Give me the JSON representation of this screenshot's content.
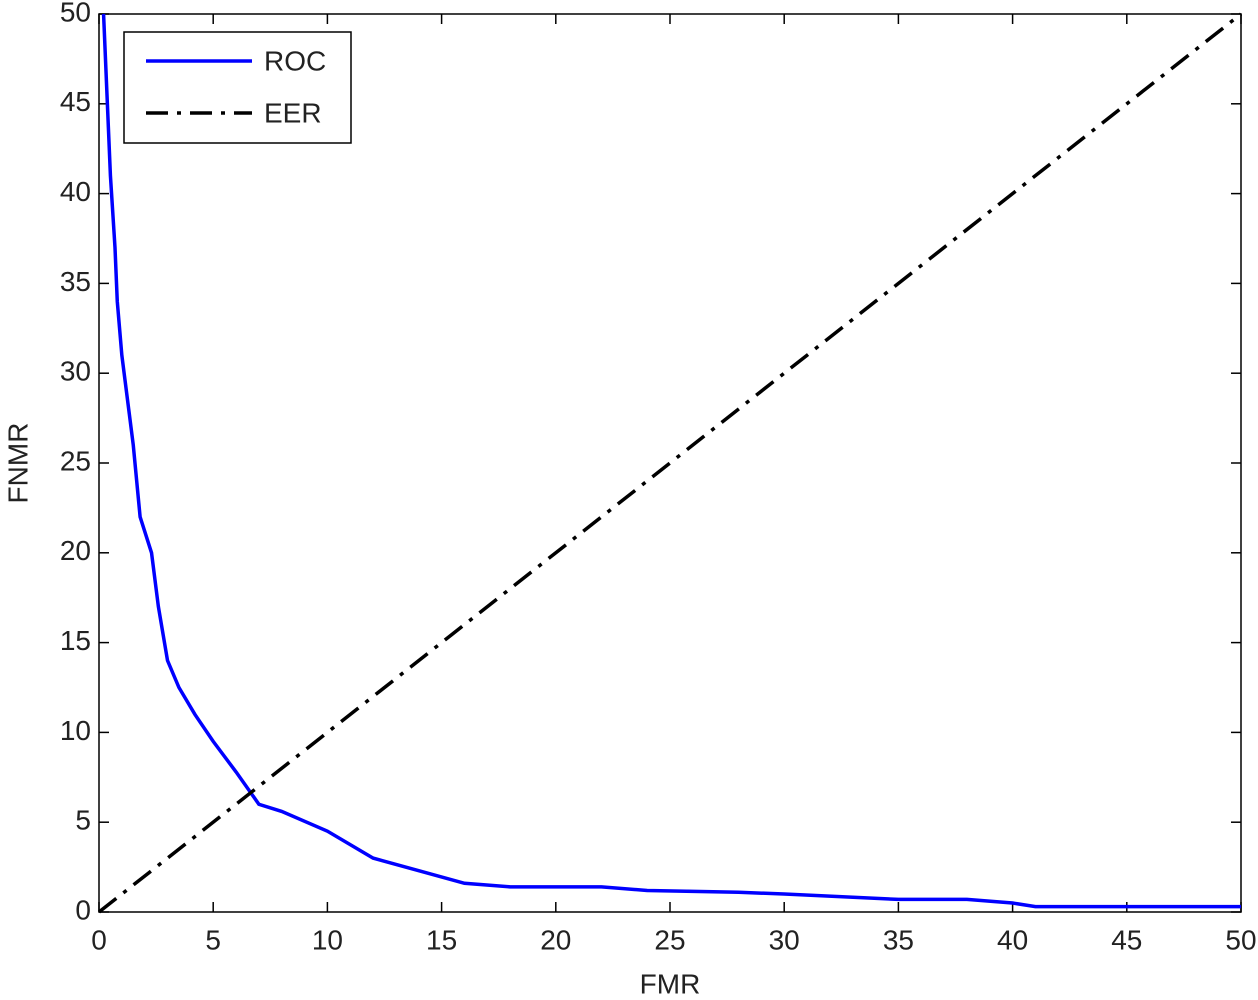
{
  "chart_data": {
    "type": "line",
    "xlabel": "FMR",
    "ylabel": "FNMR",
    "xlim": [
      0,
      50
    ],
    "ylim": [
      0,
      50
    ],
    "xticks": [
      0,
      5,
      10,
      15,
      20,
      25,
      30,
      35,
      40,
      45,
      50
    ],
    "yticks": [
      0,
      5,
      10,
      15,
      20,
      25,
      30,
      35,
      40,
      45,
      50
    ],
    "legend": "upper-left",
    "series": [
      {
        "name": "ROC",
        "color": "#0000ff",
        "style": "solid",
        "x": [
          0.2,
          0.3,
          0.5,
          0.7,
          0.8,
          1.0,
          1.3,
          1.5,
          1.8,
          2.3,
          2.6,
          3.0,
          3.5,
          4.2,
          5,
          6,
          7,
          8,
          10,
          12,
          14,
          16,
          18,
          20,
          22,
          24,
          28,
          30,
          35,
          38,
          40,
          41,
          50
        ],
        "values": [
          50,
          47,
          41,
          37,
          34,
          31,
          28,
          26,
          22,
          20,
          17,
          14,
          12.5,
          11,
          9.5,
          7.8,
          6,
          5.6,
          4.5,
          3,
          2.3,
          1.6,
          1.4,
          1.4,
          1.4,
          1.2,
          1.1,
          1,
          0.7,
          0.7,
          0.5,
          0.3,
          0.3
        ]
      },
      {
        "name": "EER",
        "color": "#000000",
        "style": "dashdot",
        "x": [
          0,
          50
        ],
        "values": [
          0,
          50
        ]
      }
    ]
  }
}
